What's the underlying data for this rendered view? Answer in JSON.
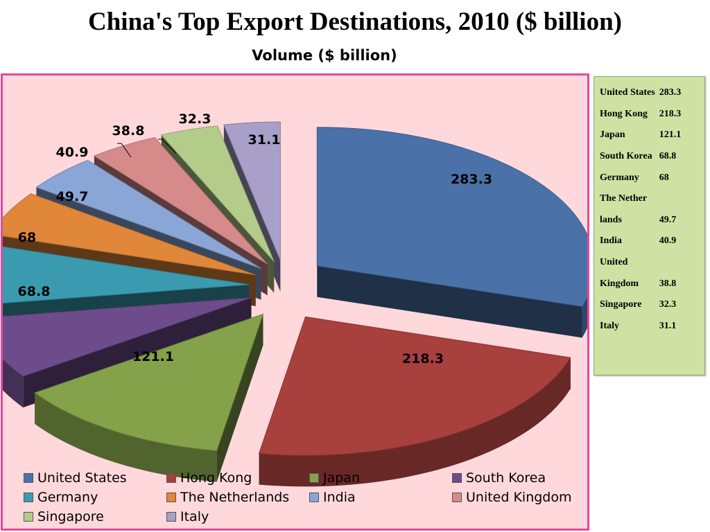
{
  "title": "China's Top Export Destinations, 2010 ($ billion)",
  "subtitle": "Volume ($ billion)",
  "colors": {
    "frame_border": "#e8479a",
    "plot_bg": "#ffd8dc",
    "table_bg": "#cfe2a3"
  },
  "table": {
    "rows": [
      {
        "label": "United States",
        "value": "283.3"
      },
      {
        "label": "Hong Kong",
        "value": "218.3"
      },
      {
        "label": "Japan",
        "value": "121.1"
      },
      {
        "label": "South Korea",
        "value": "68.8"
      },
      {
        "label": "Germany",
        "value": "68"
      },
      {
        "label": "The Nether",
        "value": ""
      },
      {
        "label": "lands",
        "value": "49.7"
      },
      {
        "label": "India",
        "value": "40.9"
      },
      {
        "label": "United",
        "value": ""
      },
      {
        "label": "Kingdom",
        "value": "38.8"
      },
      {
        "label": "Singapore",
        "value": "32.3"
      },
      {
        "label": "Italy",
        "value": "31.1"
      }
    ]
  },
  "chart_data": {
    "type": "pie",
    "title": "Volume ($ billion)",
    "categories": [
      "United States",
      "Hong Kong",
      "Japan",
      "South Korea",
      "Germany",
      "The Netherlands",
      "India",
      "United Kingdom",
      "Singapore",
      "Italy"
    ],
    "values": [
      283.3,
      218.3,
      121.1,
      68.8,
      68,
      49.7,
      40.9,
      38.8,
      32.3,
      31.1
    ],
    "data_labels": [
      "283.3",
      "218.3",
      "121.1",
      "68.8",
      "68",
      "49.7",
      "40.9",
      "38.8",
      "32.3",
      "31.1"
    ],
    "colors": [
      "#4a72a8",
      "#a8403d",
      "#84a24a",
      "#6e4c8c",
      "#3a9bb0",
      "#e0873a",
      "#8aa6d6",
      "#d68a8a",
      "#b4cc8a",
      "#a8a0c8"
    ],
    "style": "3d-exploded",
    "legend_position": "bottom"
  }
}
